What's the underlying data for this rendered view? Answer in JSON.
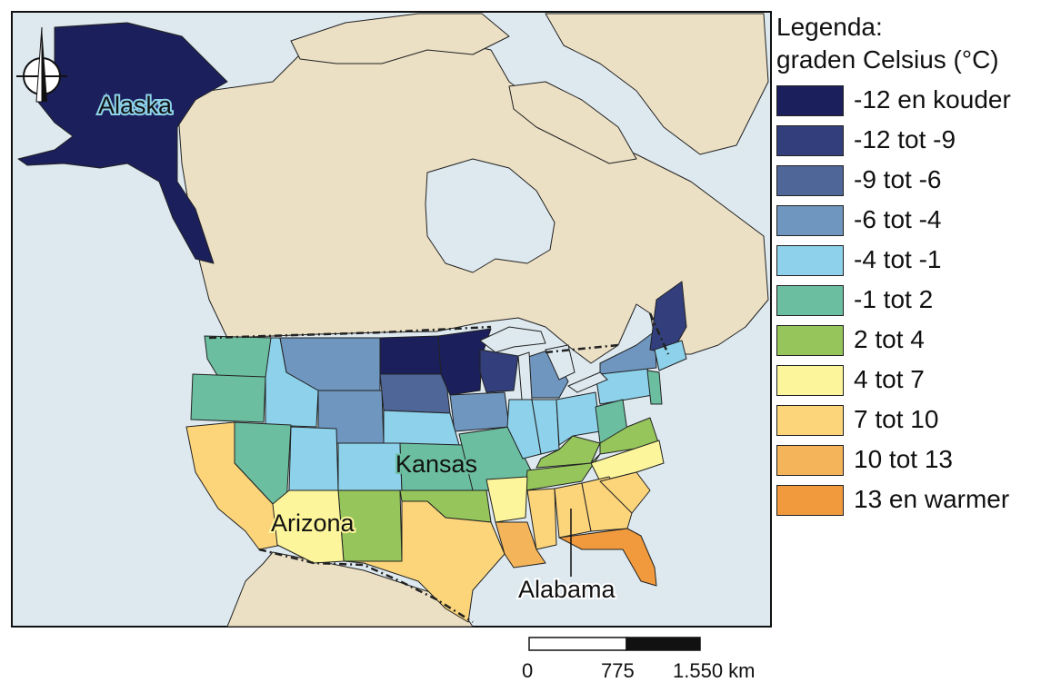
{
  "colors": {
    "sea": "#dde9ef",
    "land": "#ebdfc4",
    "c1": "#1b1f5c",
    "c2": "#323f7c",
    "c3": "#4f6699",
    "c4": "#6f96bf",
    "c5": "#8dd1ea",
    "c6": "#6cbea0",
    "c7": "#96c55c",
    "c8": "#fdf59b",
    "c9": "#fcd57b",
    "c10": "#f4b45a",
    "c11": "#f09a3d"
  },
  "legend": {
    "title_line1": "Legenda:",
    "title_line2": "graden Celsius (°C)",
    "items": [
      {
        "label": "-12 en kouder",
        "color": "#1b1f5c"
      },
      {
        "label": "-12 tot -9",
        "color": "#323f7c"
      },
      {
        "label": "-9 tot -6",
        "color": "#4f6699"
      },
      {
        "label": "-6 tot -4",
        "color": "#6f96bf"
      },
      {
        "label": "-4 tot -1",
        "color": "#8dd1ea"
      },
      {
        "label": "-1 tot 2",
        "color": "#6cbea0"
      },
      {
        "label": "2 tot 4",
        "color": "#96c55c"
      },
      {
        "label": "4 tot 7",
        "color": "#fdf59b"
      },
      {
        "label": "7 tot 10",
        "color": "#fcd57b"
      },
      {
        "label": "10 tot 13",
        "color": "#f4b45a"
      },
      {
        "label": "13 en warmer",
        "color": "#f09a3d"
      }
    ]
  },
  "places": {
    "alaska": "Alaska",
    "kansas": "Kansas",
    "arizona": "Arizona",
    "alabama": "Alabama"
  },
  "scale": {
    "zero": "0",
    "mid": "775",
    "max": "1.550 km"
  },
  "icons": {
    "compass": "north-arrow-icon"
  }
}
